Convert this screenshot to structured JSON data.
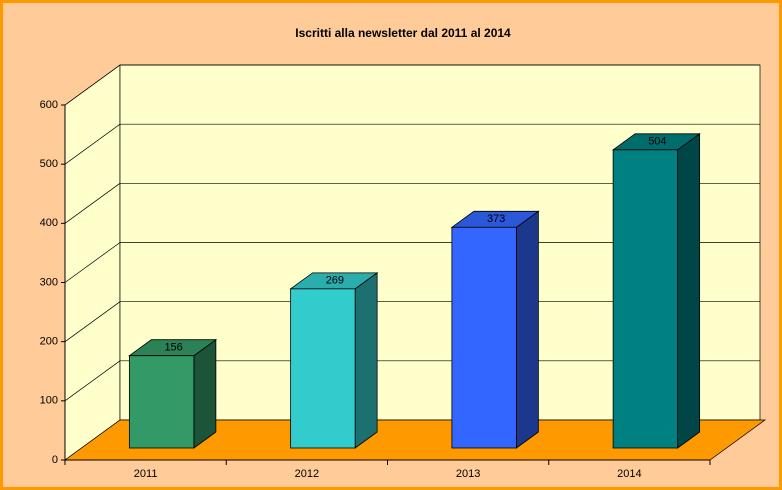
{
  "chart_data": {
    "type": "bar3d",
    "title": "Iscritti alla newsletter dal 2011 al 2014",
    "categories": [
      "2011",
      "2012",
      "2013",
      "2014"
    ],
    "values": [
      156,
      269,
      373,
      504
    ],
    "colors": [
      "#339966",
      "#33CCCC",
      "#3366FF",
      "#008080"
    ],
    "ylim": [
      0,
      600
    ],
    "yticks": [
      0,
      100,
      200,
      300,
      400,
      500,
      600
    ],
    "grid": true
  }
}
